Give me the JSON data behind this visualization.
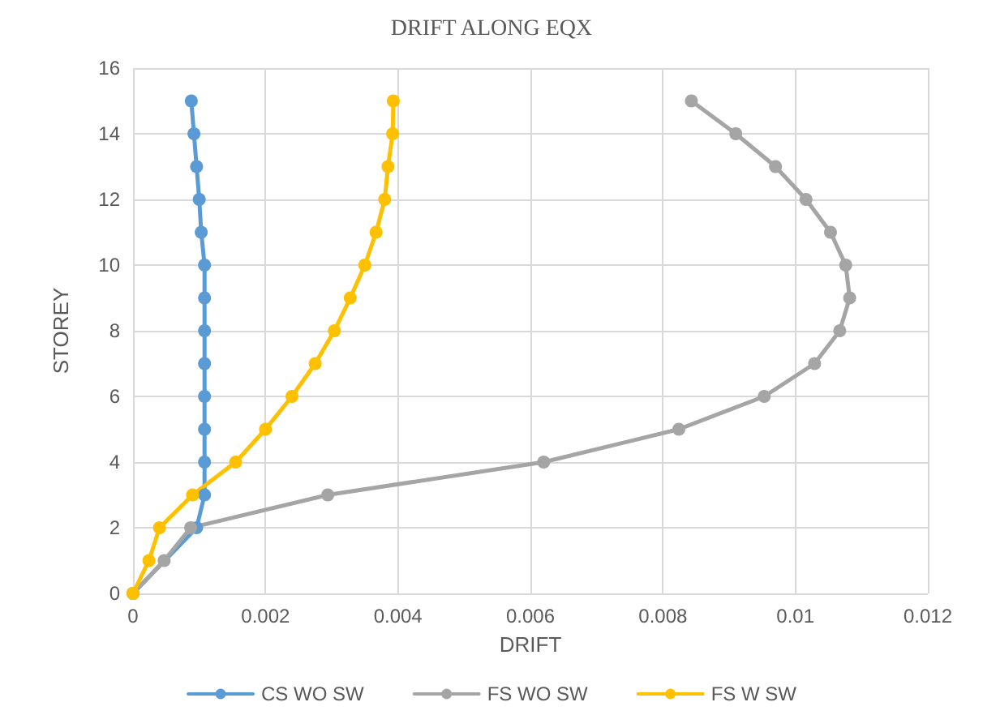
{
  "chart_data": {
    "type": "line",
    "title": "DRIFT ALONG EQX",
    "xlabel": "DRIFT",
    "ylabel": "STOREY",
    "series": [
      {
        "name": "CS WO SW",
        "color": "#5b9bd5",
        "x": [
          0,
          null,
          0.00096,
          0.00108,
          0.00108,
          0.00108,
          0.00108,
          0.00108,
          0.00108,
          0.00108,
          0.00108,
          0.00103,
          0.001,
          0.00096,
          0.00092,
          0.00088
        ],
        "values": [
          0,
          null,
          2,
          3,
          4,
          5,
          6,
          7,
          8,
          9,
          10,
          11,
          12,
          13,
          14,
          15
        ]
      },
      {
        "name": "FS WO SW",
        "color": "#a5a5a5",
        "x": [
          0,
          0.00047,
          0.00087,
          0.00294,
          0.0062,
          0.00824,
          0.00953,
          0.01029,
          0.01067,
          0.01082,
          0.01076,
          0.01053,
          0.01016,
          0.0097,
          0.0091,
          0.00843
        ],
        "values": [
          0,
          1,
          2,
          3,
          4,
          5,
          6,
          7,
          8,
          9,
          10,
          11,
          12,
          13,
          14,
          15
        ]
      },
      {
        "name": "FS W SW",
        "color": "#ffc000",
        "x": [
          0,
          0.00024,
          0.0004,
          0.0009,
          0.00155,
          0.002,
          0.0024,
          0.00275,
          0.00304,
          0.00328,
          0.0035,
          0.00367,
          0.0038,
          0.00385,
          0.00392,
          0.00393
        ],
        "values": [
          0,
          1,
          2,
          3,
          4,
          5,
          6,
          7,
          8,
          9,
          10,
          11,
          12,
          13,
          14,
          15
        ]
      }
    ],
    "xlim": [
      0,
      0.012
    ],
    "xticks": [
      0,
      0.002,
      0.004,
      0.006,
      0.008,
      0.01,
      0.012
    ],
    "ylim": [
      0,
      16
    ],
    "yticks": [
      0,
      2,
      4,
      6,
      8,
      10,
      12,
      14,
      16
    ],
    "grid": true,
    "legend": "bottom",
    "marker": "circle",
    "line_style": "solid"
  }
}
